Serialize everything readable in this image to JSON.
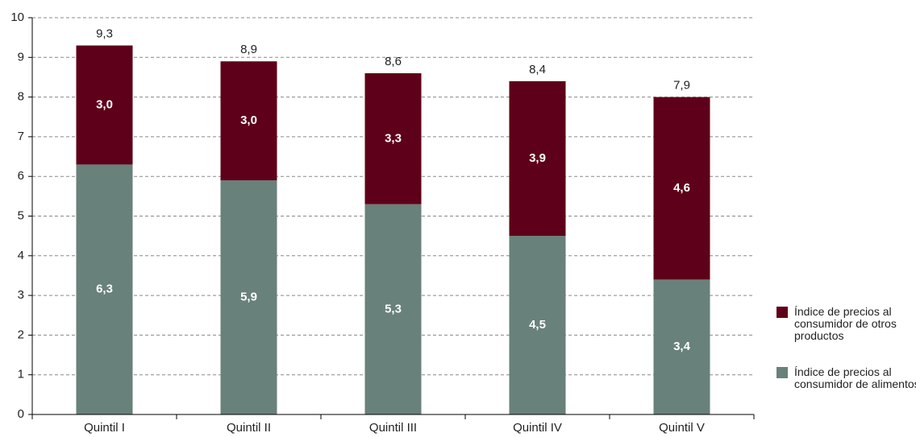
{
  "chart_data": {
    "type": "stacked_bar",
    "categories": [
      "Quintil I",
      "Quintil II",
      "Quintil III",
      "Quintil IV",
      "Quintil V"
    ],
    "series": [
      {
        "name": "Índice de precios al consumidor de alimentos",
        "color": "#68817a",
        "values": [
          6.3,
          5.9,
          5.3,
          4.5,
          3.4
        ],
        "value_labels": [
          "6,3",
          "5,9",
          "5,3",
          "4,5",
          "3,4"
        ]
      },
      {
        "name": "Índice de precios al consumidor de otros productos",
        "color": "#5e0019",
        "values": [
          3.0,
          3.0,
          3.3,
          3.9,
          4.6
        ],
        "value_labels": [
          "3,0",
          "3,0",
          "3,3",
          "3,9",
          "4,6"
        ]
      }
    ],
    "totals": [
      9.3,
      8.9,
      8.6,
      8.4,
      7.9
    ],
    "total_labels": [
      "9,3",
      "8,9",
      "8,6",
      "8,4",
      "7,9"
    ],
    "ylim": [
      0,
      10
    ],
    "yticks": [
      0,
      1,
      2,
      3,
      4,
      5,
      6,
      7,
      8,
      9,
      10
    ],
    "grid": true
  }
}
